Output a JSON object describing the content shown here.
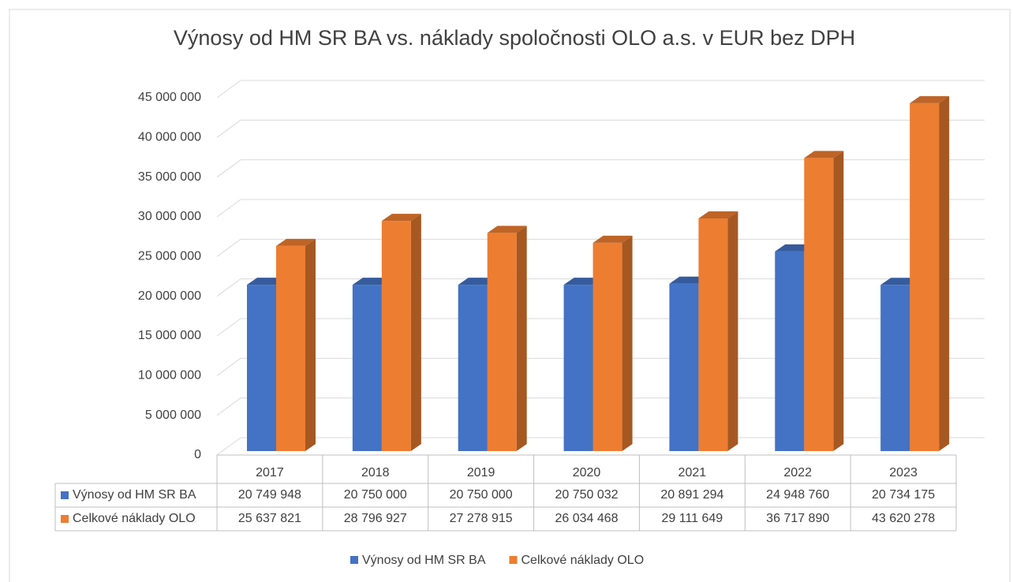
{
  "chart_data": {
    "type": "bar3d",
    "title": "Výnosy od HM SR BA vs. náklady spoločnosti OLO a.s. v EUR bez DPH",
    "categories": [
      "2017",
      "2018",
      "2019",
      "2020",
      "2021",
      "2022",
      "2023"
    ],
    "series": [
      {
        "name": "Výnosy od HM SR BA",
        "color": "#4472c4",
        "values": [
          20749948,
          20750000,
          20750000,
          20750032,
          20891294,
          24948760,
          20734175
        ],
        "value_labels": [
          "20 749 948",
          "20 750 000",
          "20 750 000",
          "20 750 032",
          "20 891 294",
          "24 948 760",
          "20 734 175"
        ]
      },
      {
        "name": "Celkové náklady OLO",
        "color": "#ed7d31",
        "values": [
          25637821,
          28796927,
          27278915,
          26034468,
          29111649,
          36717890,
          43620278
        ],
        "value_labels": [
          "25 637 821",
          "28 796 927",
          "27 278 915",
          "26 034 468",
          "29 111 649",
          "36 717 890",
          "43 620 278"
        ]
      }
    ],
    "ylim": [
      0,
      45000000
    ],
    "yticks": [
      0,
      {
        "value": 5000000,
        "label": "5 000 000"
      },
      {
        "value": 10000000,
        "label": "10 000 000"
      },
      {
        "value": 15000000,
        "label": "15 000 000"
      },
      {
        "value": 20000000,
        "label": "20 000 000"
      },
      {
        "value": 25000000,
        "label": "25 000 000"
      },
      {
        "value": 30000000,
        "label": "30 000 000"
      },
      {
        "value": 35000000,
        "label": "35 000 000"
      },
      {
        "value": 40000000,
        "label": "40 000 000"
      },
      {
        "value": 45000000,
        "label": "45 000 000"
      }
    ],
    "grid": true,
    "legend": "bottom",
    "data_table": true
  }
}
